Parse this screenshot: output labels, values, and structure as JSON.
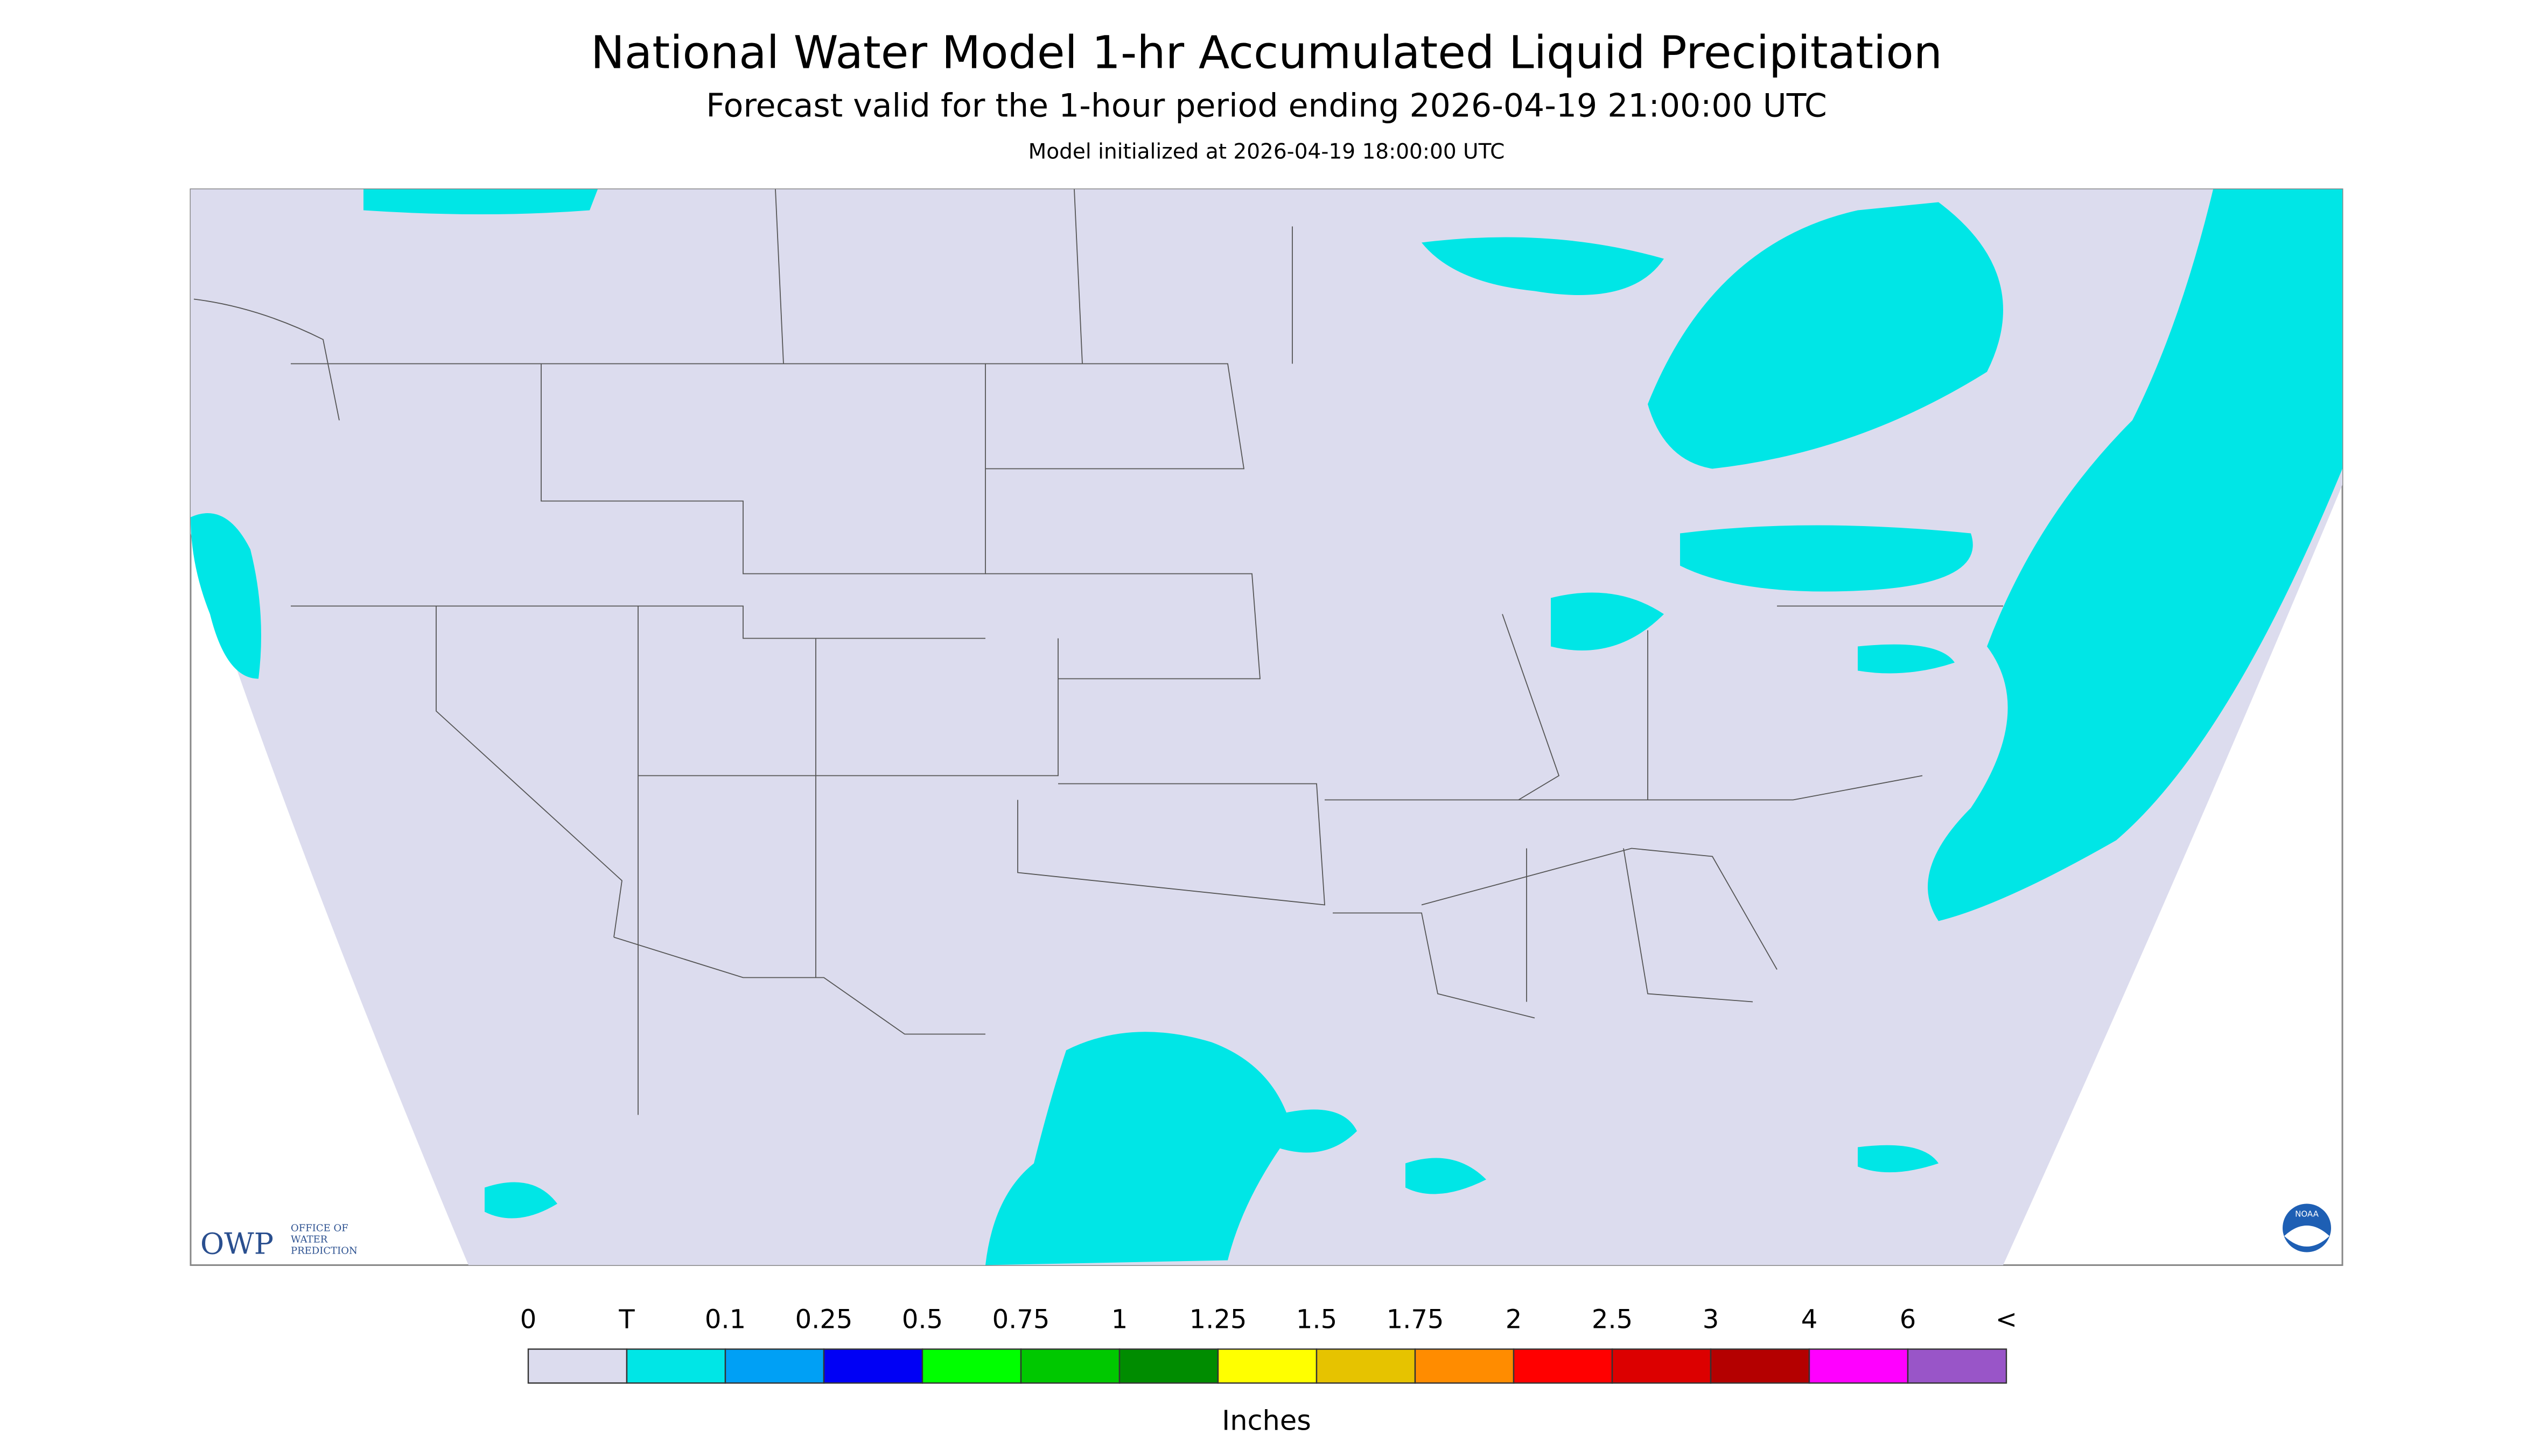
{
  "header": {
    "title": "National Water Model 1-hr Accumulated Liquid Precipitation",
    "subtitle": "Forecast valid for the 1-hour period ending 2026-04-19 21:00:00 UTC",
    "initialized": "Model initialized at 2026-04-19 18:00:00 UTC"
  },
  "legend": {
    "labels": [
      "0",
      "T",
      "0.1",
      "0.25",
      "0.5",
      "0.75",
      "1",
      "1.25",
      "1.5",
      "1.75",
      "2",
      "2.5",
      "3",
      "4",
      "6",
      "<"
    ],
    "colors": [
      "#dcdcee",
      "#00e6e6",
      "#00a0f5",
      "#0000f5",
      "#00ff00",
      "#00c800",
      "#008c00",
      "#ffff00",
      "#e6c300",
      "#ff8c00",
      "#ff0000",
      "#dc0000",
      "#b40000",
      "#ff00ff",
      "#9955c8"
    ],
    "units": "Inches"
  },
  "logos": {
    "owp": "OWP",
    "owp_text": "OFFICE OF WATER PREDICTION",
    "noaa": "NOAA"
  }
}
